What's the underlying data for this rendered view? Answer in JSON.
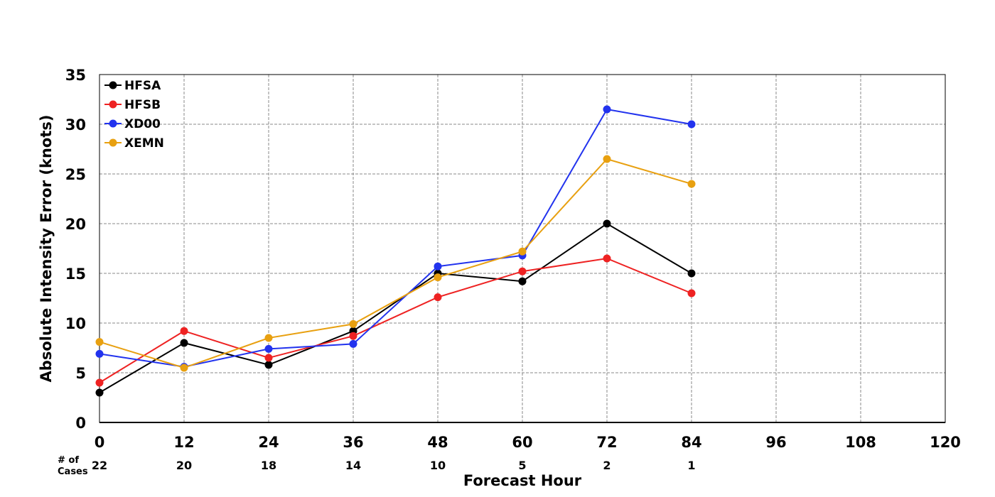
{
  "chart_data": {
    "type": "line",
    "title": "",
    "xlabel": "Forecast Hour",
    "ylabel": "Absolute Intensity Error (knots)",
    "x": [
      0,
      12,
      24,
      36,
      48,
      60,
      72,
      84
    ],
    "xlim": [
      0,
      120
    ],
    "ylim": [
      0,
      35
    ],
    "xticks": [
      "0",
      "12",
      "24",
      "36",
      "48",
      "60",
      "72",
      "84",
      "96",
      "108",
      "120"
    ],
    "yticks": [
      "0",
      "5",
      "10",
      "15",
      "20",
      "25",
      "30",
      "35"
    ],
    "grid": true,
    "legend_position": "top-left",
    "cases_label": [
      "# of",
      "Cases"
    ],
    "cases": [
      "22",
      "20",
      "18",
      "14",
      "10",
      "5",
      "2",
      "1"
    ],
    "series": [
      {
        "name": "HFSA",
        "color": "#000000",
        "values": [
          3.0,
          8.0,
          5.8,
          9.2,
          15.0,
          14.2,
          20.0,
          15.0
        ]
      },
      {
        "name": "HFSB",
        "color": "#ee2222",
        "values": [
          4.0,
          9.2,
          6.5,
          8.7,
          12.6,
          15.2,
          16.5,
          13.0
        ]
      },
      {
        "name": "XD00",
        "color": "#2233ee",
        "values": [
          6.9,
          5.6,
          7.4,
          7.9,
          15.7,
          16.8,
          31.5,
          30.0
        ]
      },
      {
        "name": "XEMN",
        "color": "#e8a010",
        "values": [
          8.1,
          5.5,
          8.5,
          9.9,
          14.6,
          17.2,
          26.5,
          24.0
        ]
      }
    ]
  }
}
